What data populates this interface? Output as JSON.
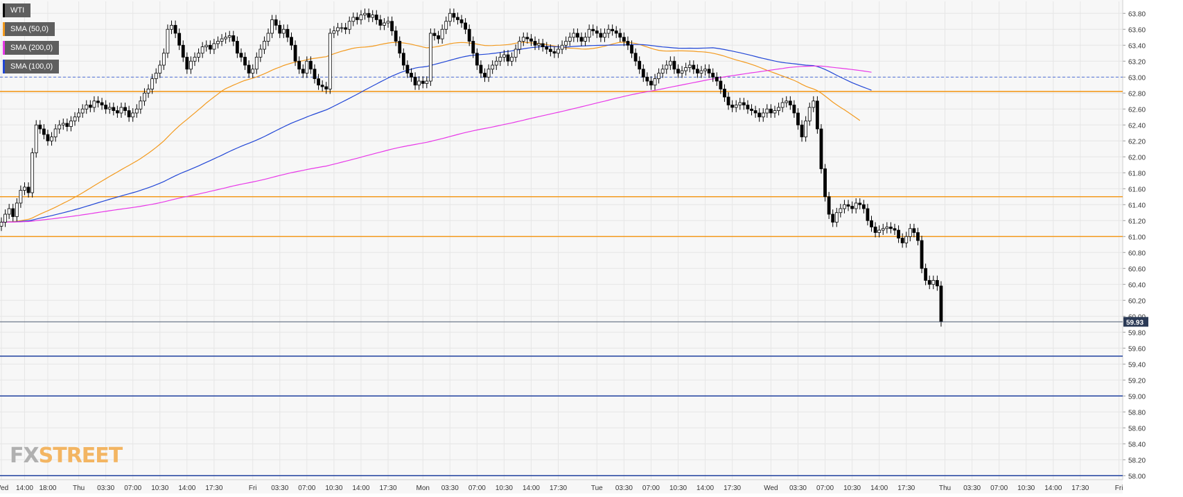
{
  "chart_data": {
    "type": "candlestick",
    "symbol": "WTI",
    "legend": [
      {
        "label": "WTI",
        "color": "#000000"
      },
      {
        "label": "SMA (50,0)",
        "color": "#f39a1e"
      },
      {
        "label": "SMA (200,0)",
        "color": "#e838e8"
      },
      {
        "label": "SMA (100,0)",
        "color": "#2146d6"
      }
    ],
    "y_ticks": [
      "63.80",
      "63.60",
      "63.40",
      "63.20",
      "63.00",
      "62.80",
      "62.60",
      "62.40",
      "62.20",
      "62.00",
      "61.80",
      "61.60",
      "61.40",
      "61.20",
      "61.00",
      "60.80",
      "60.60",
      "60.40",
      "60.20",
      "60.00",
      "59.80",
      "59.60",
      "59.40",
      "59.20",
      "59.00",
      "58.80",
      "58.60",
      "58.40",
      "58.20",
      "58.00"
    ],
    "ylim": [
      57.95,
      63.95
    ],
    "x_ticks": [
      {
        "label": "Wed",
        "i": 0
      },
      {
        "label": "14:00",
        "i": 6
      },
      {
        "label": "18:00",
        "i": 12
      },
      {
        "label": "Thu",
        "i": 20
      },
      {
        "label": "03:30",
        "i": 27
      },
      {
        "label": "07:00",
        "i": 34
      },
      {
        "label": "10:30",
        "i": 41
      },
      {
        "label": "14:00",
        "i": 48
      },
      {
        "label": "17:30",
        "i": 55
      },
      {
        "label": "Fri",
        "i": 65
      },
      {
        "label": "03:30",
        "i": 72
      },
      {
        "label": "07:00",
        "i": 79
      },
      {
        "label": "10:30",
        "i": 86
      },
      {
        "label": "14:00",
        "i": 93
      },
      {
        "label": "17:30",
        "i": 100
      },
      {
        "label": "Mon",
        "i": 109
      },
      {
        "label": "03:30",
        "i": 116
      },
      {
        "label": "07:00",
        "i": 123
      },
      {
        "label": "10:30",
        "i": 130
      },
      {
        "label": "14:00",
        "i": 137
      },
      {
        "label": "17:30",
        "i": 144
      },
      {
        "label": "Tue",
        "i": 154
      },
      {
        "label": "03:30",
        "i": 161
      },
      {
        "label": "07:00",
        "i": 168
      },
      {
        "label": "10:30",
        "i": 175
      },
      {
        "label": "14:00",
        "i": 182
      },
      {
        "label": "17:30",
        "i": 189
      },
      {
        "label": "Wed",
        "i": 199
      },
      {
        "label": "03:30",
        "i": 206
      },
      {
        "label": "07:00",
        "i": 213
      },
      {
        "label": "10:30",
        "i": 220
      },
      {
        "label": "14:00",
        "i": 227
      },
      {
        "label": "17:30",
        "i": 234
      },
      {
        "label": "Thu",
        "i": 244
      },
      {
        "label": "03:30",
        "i": 251
      },
      {
        "label": "07:00",
        "i": 258
      },
      {
        "label": "10:30",
        "i": 265
      },
      {
        "label": "14:00",
        "i": 272
      },
      {
        "label": "17:30",
        "i": 279
      },
      {
        "label": "Fri",
        "i": 289
      }
    ],
    "close": [
      61.18,
      61.28,
      61.35,
      61.25,
      61.42,
      61.58,
      61.62,
      61.55,
      62.05,
      62.4,
      62.35,
      62.28,
      62.2,
      62.25,
      62.35,
      62.4,
      62.42,
      62.38,
      62.45,
      62.5,
      62.55,
      62.6,
      62.65,
      62.62,
      62.7,
      62.68,
      62.65,
      62.6,
      62.62,
      62.58,
      62.55,
      62.62,
      62.58,
      62.5,
      62.55,
      62.6,
      62.7,
      62.8,
      62.85,
      62.98,
      63.05,
      63.15,
      63.3,
      63.6,
      63.65,
      63.55,
      63.4,
      63.25,
      63.1,
      63.2,
      63.25,
      63.3,
      63.38,
      63.4,
      63.35,
      63.42,
      63.45,
      63.48,
      63.5,
      63.52,
      63.45,
      63.3,
      63.25,
      63.15,
      63.05,
      63.1,
      63.25,
      63.35,
      63.45,
      63.55,
      63.72,
      63.65,
      63.55,
      63.6,
      63.5,
      63.4,
      63.2,
      63.1,
      63.05,
      63.2,
      63.1,
      62.98,
      62.9,
      62.88,
      62.85,
      63.55,
      63.58,
      63.62,
      63.62,
      63.6,
      63.7,
      63.75,
      63.72,
      63.78,
      63.8,
      63.75,
      63.78,
      63.72,
      63.65,
      63.68,
      63.7,
      63.58,
      63.45,
      63.3,
      63.15,
      63.05,
      63.0,
      62.9,
      62.95,
      62.92,
      62.95,
      63.55,
      63.52,
      63.48,
      63.6,
      63.7,
      63.8,
      63.75,
      63.72,
      63.68,
      63.6,
      63.45,
      63.3,
      63.15,
      63.05,
      63.0,
      63.1,
      63.15,
      63.2,
      63.25,
      63.28,
      63.2,
      63.25,
      63.35,
      63.45,
      63.5,
      63.48,
      63.45,
      63.4,
      63.42,
      63.38,
      63.35,
      63.32,
      63.3,
      63.35,
      63.4,
      63.45,
      63.5,
      63.55,
      63.5,
      63.45,
      63.5,
      63.6,
      63.58,
      63.55,
      63.5,
      63.55,
      63.6,
      63.58,
      63.55,
      63.5,
      63.45,
      63.4,
      63.3,
      63.2,
      63.1,
      63.0,
      62.95,
      62.9,
      62.98,
      63.05,
      63.1,
      63.15,
      63.2,
      63.1,
      63.05,
      63.08,
      63.12,
      63.15,
      63.1,
      63.05,
      63.08,
      63.1,
      63.05,
      63.0,
      62.95,
      62.85,
      62.75,
      62.65,
      62.62,
      62.65,
      62.68,
      62.65,
      62.6,
      62.58,
      62.55,
      62.5,
      62.55,
      62.6,
      62.55,
      62.58,
      62.62,
      62.68,
      62.7,
      62.65,
      62.55,
      62.4,
      62.25,
      62.45,
      62.62,
      62.7,
      62.35,
      61.85,
      61.5,
      61.28,
      61.18,
      61.3,
      61.35,
      61.4,
      61.38,
      61.35,
      61.42,
      61.4,
      61.35,
      61.2,
      61.12,
      61.05,
      61.08,
      61.1,
      61.12,
      61.1,
      61.08,
      60.98,
      60.92,
      61.0,
      61.1,
      61.05,
      60.95,
      60.6,
      60.45,
      60.4,
      60.45,
      60.38,
      59.93
    ],
    "sma50_close_idx": [
      0,
      222
    ],
    "sma100_close_idx": [
      0,
      225
    ],
    "sma200_close_idx": [
      0,
      225
    ],
    "horizontal_levels": {
      "orange": [
        62.82,
        61.5,
        61.0
      ],
      "blue": [
        59.5,
        59.0,
        58.0
      ],
      "dashed_blue": [
        63.0
      ]
    },
    "last_price": "59.93"
  },
  "branding": {
    "logo_fx": "FX",
    "logo_street": "STREET"
  }
}
